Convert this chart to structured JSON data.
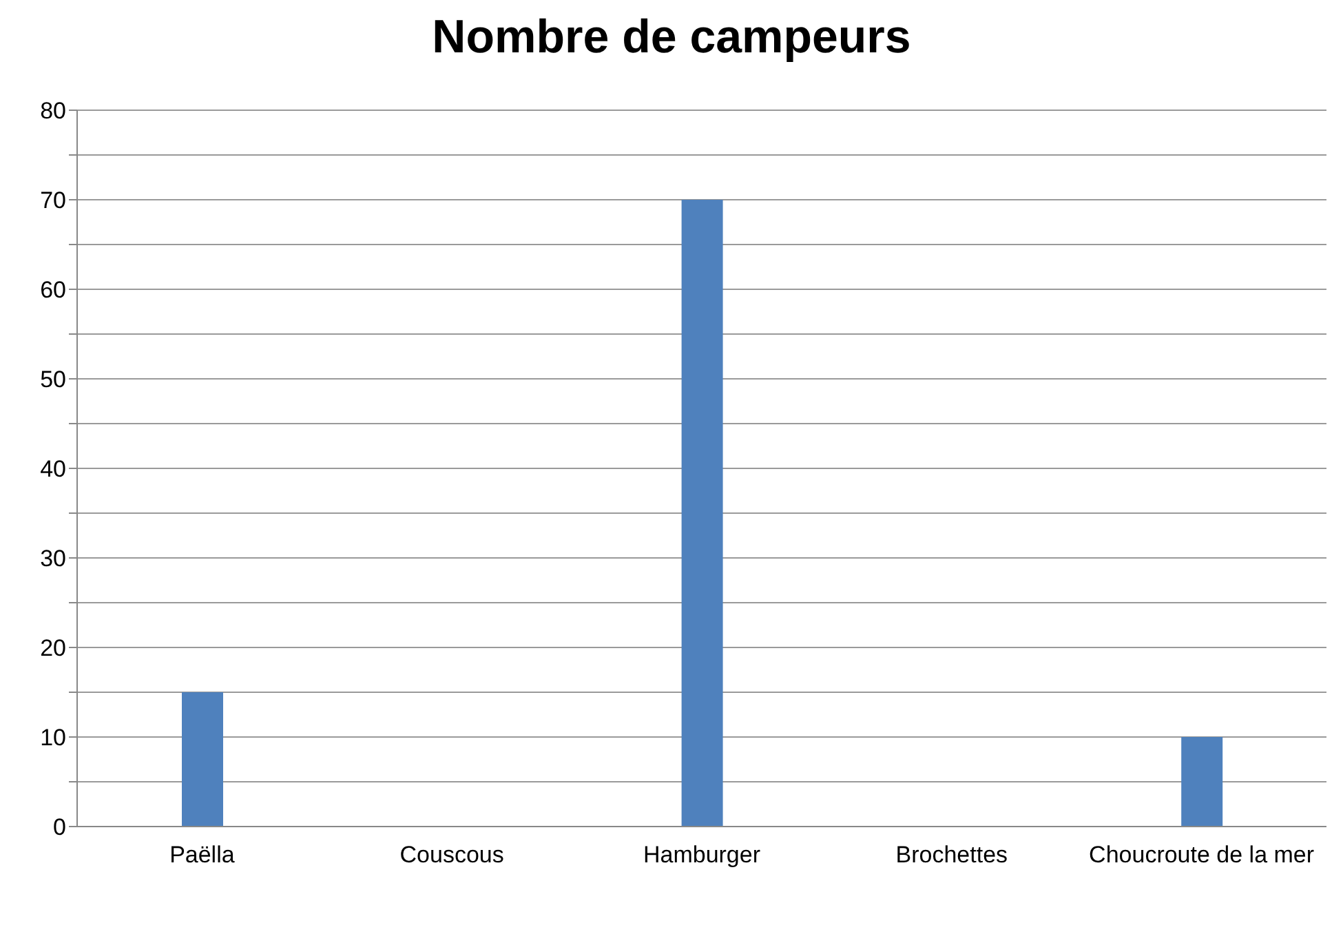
{
  "chart_data": {
    "type": "bar",
    "title": "Nombre de campeurs",
    "categories": [
      "Paëlla",
      "Couscous",
      "Hamburger",
      "Brochettes",
      "Choucroute de la mer"
    ],
    "values": [
      15,
      0,
      70,
      0,
      10
    ],
    "color": "#4f81bd",
    "ylim": [
      0,
      80
    ],
    "yticks": [
      0,
      {
        "value": 5,
        "label": null
      },
      10,
      {
        "value": 15,
        "label": null
      },
      20,
      {
        "value": 25,
        "label": null
      },
      30,
      {
        "value": 35,
        "label": null
      },
      40,
      {
        "value": 45,
        "label": null
      },
      50,
      {
        "value": 55,
        "label": null
      },
      60,
      {
        "value": 65,
        "label": null
      },
      70,
      {
        "value": 75,
        "label": null
      },
      80
    ],
    "grid": "y"
  }
}
